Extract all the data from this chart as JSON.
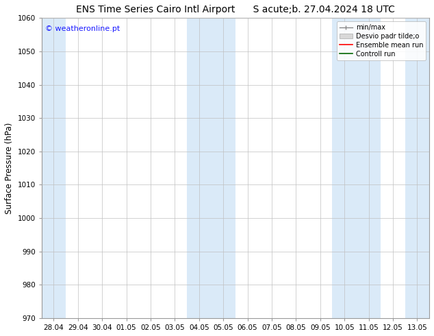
{
  "title_left": "ENS Time Series Cairo Intl Airport",
  "title_right": "S acute;b. 27.04.2024 18 UTC",
  "ylabel": "Surface Pressure (hPa)",
  "ylim": [
    970,
    1060
  ],
  "yticks": [
    970,
    980,
    990,
    1000,
    1010,
    1020,
    1030,
    1040,
    1050,
    1060
  ],
  "xtick_labels": [
    "28.04",
    "29.04",
    "30.04",
    "01.05",
    "02.05",
    "03.05",
    "04.05",
    "05.05",
    "06.05",
    "07.05",
    "08.05",
    "09.05",
    "10.05",
    "11.05",
    "12.05",
    "13.05"
  ],
  "watermark": "© weatheronline.pt",
  "watermark_color": "#1a1aff",
  "background_color": "#ffffff",
  "plot_bg_color": "#ffffff",
  "light_blue_band_color": "#daeaf8",
  "lighter_blue_band_color": "#e8f4fc",
  "shaded_col_indices": [
    0,
    6,
    7,
    12,
    13
  ],
  "legend_labels": [
    "min/max",
    "Desvio padr tilde;o",
    "Ensemble mean run",
    "Controll run"
  ],
  "legend_colors_line": [
    "#aaaaaa",
    "#cccccc",
    "#ff0000",
    "#006600"
  ],
  "title_fontsize": 10,
  "tick_fontsize": 7.5,
  "ylabel_fontsize": 8.5,
  "grid_color": "#c0c0c0",
  "spine_color": "#999999"
}
